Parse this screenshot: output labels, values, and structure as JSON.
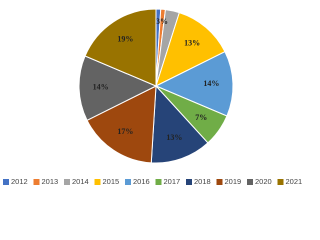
{
  "chart_data": {
    "type": "pie",
    "categories": [
      "2012",
      "2013",
      "2014",
      "2015",
      "2016",
      "2017",
      "2018",
      "2019",
      "2020",
      "2021"
    ],
    "values": [
      1,
      1,
      3,
      13,
      14,
      7,
      13,
      17,
      14,
      19
    ],
    "value_labels": [
      null,
      null,
      "3%",
      "13%",
      "14%",
      "7%",
      "13%",
      "17%",
      "14%",
      "19%"
    ],
    "colors": [
      "#4472c4",
      "#ed7d31",
      "#a5a5a5",
      "#ffc000",
      "#5b9bd5",
      "#70ad47",
      "#264478",
      "#9e480e",
      "#636363",
      "#997300"
    ],
    "legend": "bottom"
  }
}
